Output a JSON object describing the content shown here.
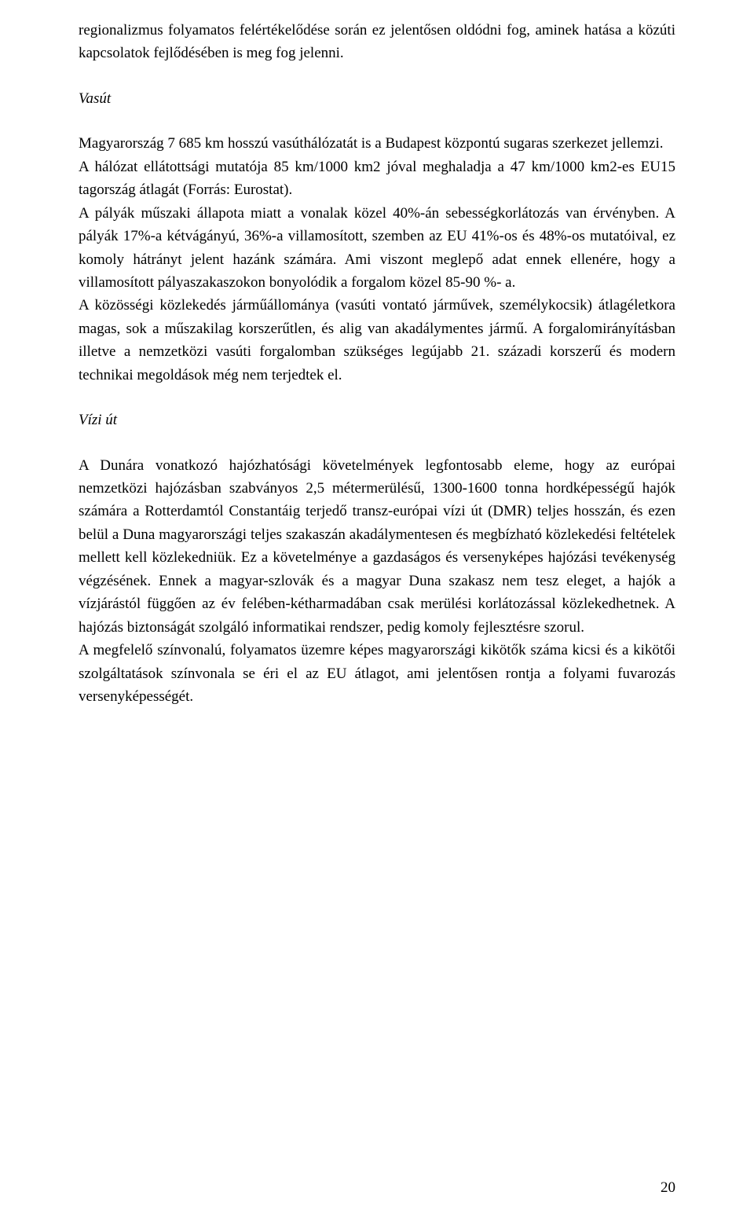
{
  "p1": "regionalizmus folyamatos felértékelődése során ez jelentősen oldódni fog, aminek hatása a közúti kapcsolatok fejlődésében is meg fog jelenni.",
  "h1": "Vasút",
  "p2": "Magyarország 7 685 km hosszú vasúthálózatát is a Budapest központú sugaras szerkezet jellemzi.",
  "p3": "A hálózat ellátottsági mutatója 85 km/1000 km2 jóval meghaladja a 47 km/1000 km2-es EU15 tagország átlagát (Forrás: Eurostat).",
  "p4": "A pályák műszaki állapota miatt a vonalak közel 40%-án sebességkorlátozás van érvényben. A pályák 17%-a kétvágányú, 36%-a villamosított, szemben az EU 41%-os és 48%-os mutatóival, ez komoly hátrányt jelent hazánk számára. Ami viszont meglepő adat ennek ellenére, hogy a villamosított pályaszakaszokon bonyolódik a forgalom közel 85-90 %- a.",
  "p5": "A közösségi közlekedés járműállománya (vasúti vontató járművek, személykocsik) átlagéletkora magas, sok a műszakilag korszerűtlen, és alig van akadálymentes jármű. A forgalomirányításban illetve a nemzetközi vasúti forgalomban szükséges legújabb 21. századi korszerű és modern technikai megoldások még nem terjedtek el.",
  "h2": "Vízi út",
  "p6": "A Dunára vonatkozó hajózhatósági követelmények legfontosabb eleme, hogy az európai nemzetközi hajózásban szabványos 2,5 métermerülésű, 1300-1600 tonna hordképességű hajók számára a Rotterdamtól Constantáig terjedő transz-európai vízi út (DMR) teljes hosszán, és ezen belül a Duna magyarországi teljes szakaszán akadálymentesen és megbízható közlekedési feltételek mellett kell közlekedniük. Ez a követelménye a gazdaságos és versenyképes hajózási tevékenység végzésének. Ennek a magyar-szlovák és a magyar Duna szakasz nem tesz eleget, a hajók a vízjárástól függően az év felében-kétharmadában csak merülési korlátozással közlekedhetnek. A hajózás biztonságát szolgáló informatikai rendszer, pedig komoly fejlesztésre szorul.",
  "p7": "A megfelelő színvonalú, folyamatos üzemre képes magyarországi kikötők száma kicsi és a kikötői szolgáltatások színvonala se éri el az EU átlagot, ami jelentősen rontja a folyami fuvarozás versenyképességét.",
  "pageNumber": "20"
}
